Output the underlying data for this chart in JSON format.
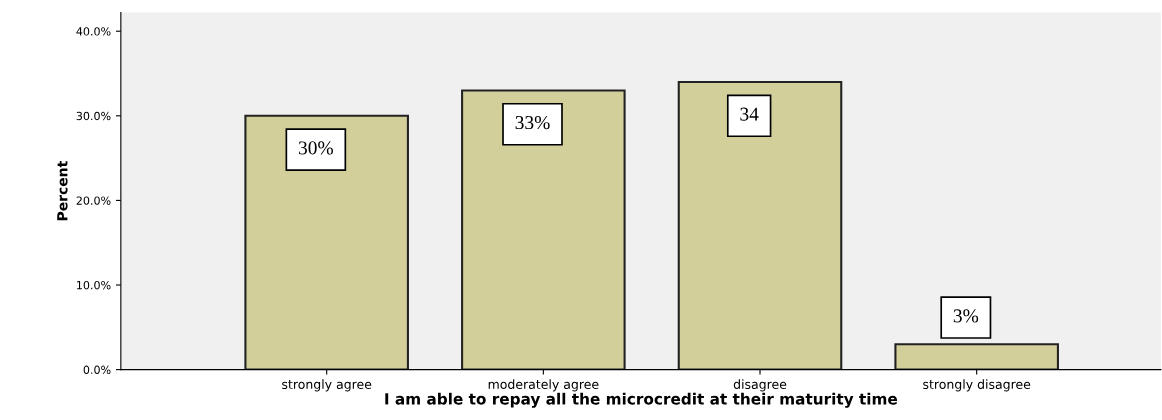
{
  "chart_data": {
    "type": "bar",
    "xlabel": "I am able to repay all the microcredit at their maturity time",
    "ylabel": "Percent",
    "categories": [
      "strongly agree",
      "moderately agree",
      "disagree",
      "strongly disagree"
    ],
    "values": [
      30,
      33,
      34,
      3
    ],
    "value_labels": [
      "30%",
      "33%",
      "34",
      "3%"
    ],
    "color": "#d3cf9b",
    "ylim": [
      0,
      42.2
    ],
    "yticks": [
      {
        "value": 0,
        "label": "0.0%"
      },
      {
        "value": 10,
        "label": "10.0%"
      },
      {
        "value": 20,
        "label": "20.0%"
      },
      {
        "value": 30,
        "label": "30.0%"
      },
      {
        "value": 40,
        "label": "40.0%"
      }
    ],
    "grid": false
  }
}
